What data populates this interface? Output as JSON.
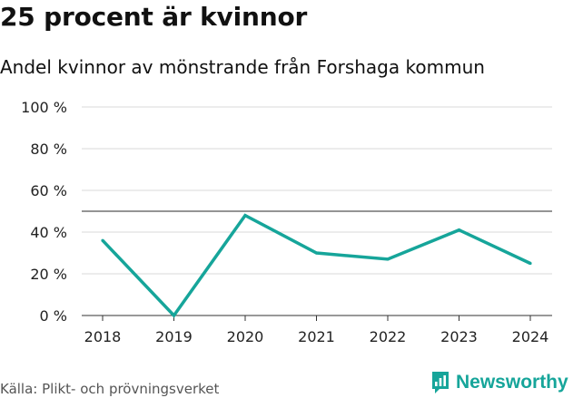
{
  "title": "25 procent är kvinnor",
  "subtitle": "Andel kvinnor av mönstrande från Forshaga kommun",
  "source": "Källa: Plikt- och prövningsverket",
  "brand": "Newsworthy",
  "colors": {
    "line": "#16a59a",
    "grid": "#d9d9d9",
    "reference": "#555555",
    "brand": "#16a59a"
  },
  "chart_data": {
    "type": "line",
    "title": "25 procent är kvinnor",
    "subtitle": "Andel kvinnor av mönstrande från Forshaga kommun",
    "xlabel": "",
    "ylabel": "",
    "categories": [
      "2018",
      "2019",
      "2020",
      "2021",
      "2022",
      "2023",
      "2024"
    ],
    "series": [
      {
        "name": "Andel kvinnor",
        "values": [
          36,
          0,
          48,
          30,
          27,
          41,
          25
        ]
      }
    ],
    "ylim": [
      0,
      100
    ],
    "yticks": [
      0,
      20,
      40,
      60,
      80,
      100
    ],
    "ytick_labels": [
      "0 %",
      "20 %",
      "40 %",
      "60 %",
      "80 %",
      "100 %"
    ],
    "reference_line": 50,
    "grid": true
  }
}
